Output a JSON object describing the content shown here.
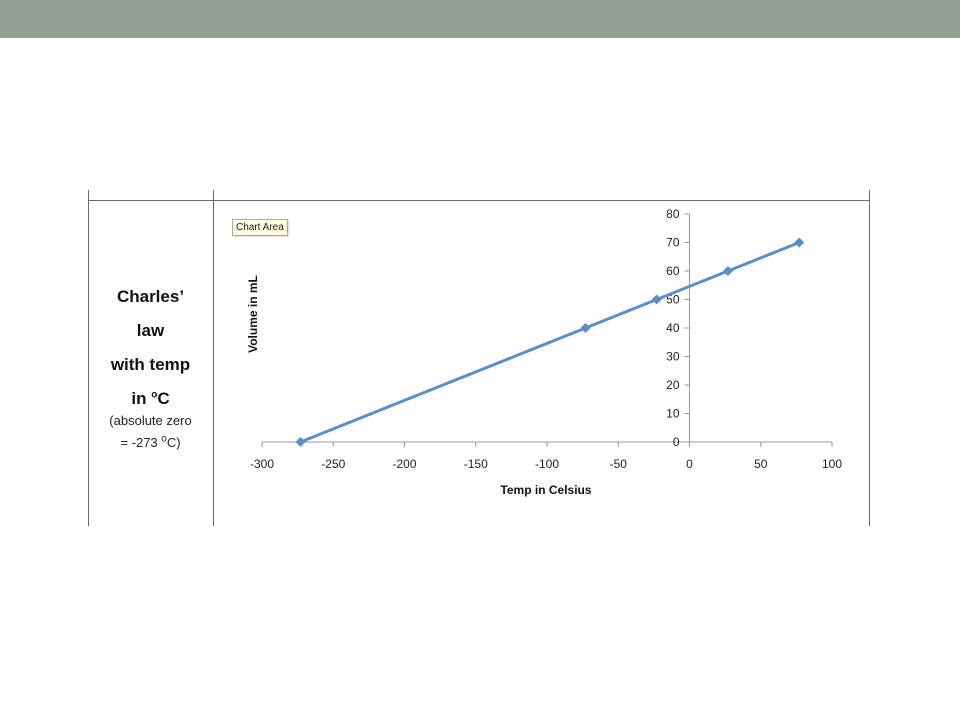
{
  "theme": {
    "top_bar_color": "#949f96",
    "line_color": "#5b8fc7"
  },
  "label_cell": {
    "line1": "Charles’",
    "line2": "law",
    "line3": "with temp",
    "line4_prefix": "in ",
    "line4_sup": "o",
    "line4_suffix": "C",
    "sub1": "(absolute zero",
    "sub2_prefix": "= -273 ",
    "sub2_sup": "o",
    "sub2_suffix": "C)"
  },
  "tooltip": "Chart Area",
  "chart_data": {
    "type": "line",
    "title": "",
    "xlabel": "Temp in Celsius",
    "ylabel": "Volume in mL",
    "xlim": [
      -300,
      100
    ],
    "ylim": [
      0,
      80
    ],
    "x_ticks": [
      -300,
      -250,
      -200,
      -150,
      -100,
      -50,
      0,
      50,
      100
    ],
    "y_ticks": [
      0,
      10,
      20,
      30,
      40,
      50,
      60,
      70,
      80
    ],
    "grid": false,
    "legend": "none",
    "marker": "diamond",
    "series": [
      {
        "x": [
          -273,
          -73,
          -23,
          27,
          77
        ],
        "y": [
          0,
          40,
          50,
          60,
          70
        ]
      }
    ]
  }
}
